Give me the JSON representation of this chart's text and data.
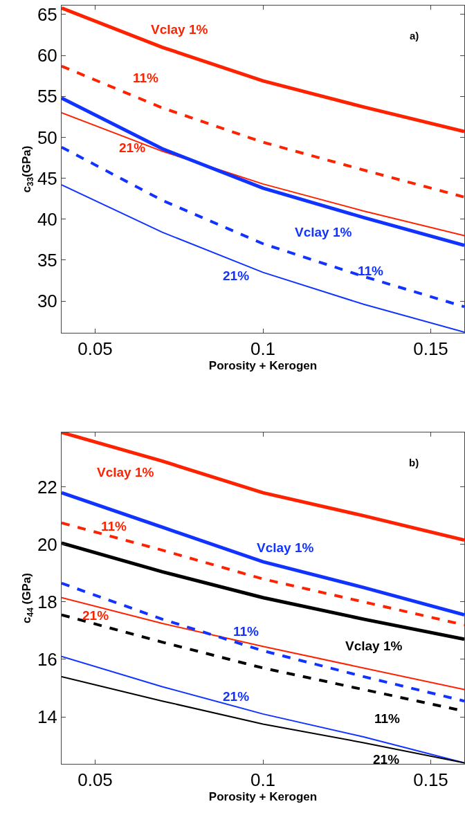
{
  "chart_data": [
    {
      "type": "line",
      "xlabel": "Porosity + Kerogen",
      "ylabel": "c$_{33}$(GPa)",
      "x": [
        0.04,
        0.07,
        0.1,
        0.13,
        0.16
      ],
      "xlim": [
        0.04,
        0.16
      ],
      "xticks": [
        0.05,
        0.1,
        0.15
      ],
      "ylim": [
        26.1,
        66.1
      ],
      "yticks": [
        30,
        35,
        40,
        45,
        50,
        55,
        60,
        65
      ],
      "legend": false,
      "marker": "none",
      "series": [
        {
          "name": "Vclay 1%",
          "color": "#ff2200",
          "line_style": "solid",
          "values": [
            65.8,
            61.0,
            56.9,
            53.7,
            50.7
          ]
        },
        {
          "name": "11%",
          "color": "#ff2200",
          "line_style": "dashed",
          "values": [
            58.7,
            53.6,
            49.4,
            46.0,
            42.7
          ]
        },
        {
          "name": "21%",
          "color": "#ff2200",
          "line_style": "solid",
          "values": [
            53.0,
            48.3,
            44.3,
            41.0,
            38.0
          ]
        },
        {
          "name": "Vclay 1%",
          "color": "#1133ff",
          "line_style": "solid",
          "values": [
            54.8,
            48.6,
            43.8,
            40.2,
            36.8
          ]
        },
        {
          "name": "11%",
          "color": "#1133ff",
          "line_style": "dashed",
          "values": [
            48.8,
            42.3,
            37.0,
            33.0,
            29.3
          ]
        },
        {
          "name": "21%",
          "color": "#1133ff",
          "line_style": "solid",
          "values": [
            44.2,
            38.4,
            33.5,
            29.6,
            26.2
          ]
        }
      ],
      "annotations": [
        "a)"
      ]
    },
    {
      "type": "line",
      "xlabel": "Porosity + Kerogen",
      "ylabel": "c$_{44}$ (GPa)",
      "x": [
        0.04,
        0.07,
        0.1,
        0.13,
        0.16
      ],
      "xlim": [
        0.04,
        0.16
      ],
      "xticks": [
        0.05,
        0.1,
        0.15
      ],
      "ylim": [
        12.36,
        23.9
      ],
      "yticks": [
        14,
        16,
        18,
        20,
        22
      ],
      "legend": false,
      "marker": "none",
      "series": [
        {
          "name": "Vclay 1%",
          "color": "#ff2200",
          "line_style": "solid",
          "values": [
            23.9,
            22.9,
            21.8,
            21.0,
            20.15
          ]
        },
        {
          "name": "11%",
          "color": "#ff2200",
          "line_style": "dashed",
          "values": [
            20.75,
            19.8,
            18.8,
            18.0,
            17.2
          ]
        },
        {
          "name": "21%",
          "color": "#ff2200",
          "line_style": "solid",
          "values": [
            18.15,
            17.25,
            16.45,
            15.7,
            14.95
          ]
        },
        {
          "name": "Vclay 1%",
          "color": "#1133ff",
          "line_style": "solid",
          "values": [
            21.8,
            20.6,
            19.4,
            18.5,
            17.55
          ]
        },
        {
          "name": "11%",
          "color": "#1133ff",
          "line_style": "dashed",
          "values": [
            18.65,
            17.4,
            16.3,
            15.4,
            14.55
          ]
        },
        {
          "name": "21%",
          "color": "#1133ff",
          "line_style": "solid",
          "values": [
            16.1,
            15.05,
            14.1,
            13.3,
            12.4
          ]
        },
        {
          "name": "Vclay 1%",
          "color": "#000000",
          "line_style": "solid",
          "values": [
            20.05,
            19.05,
            18.15,
            17.4,
            16.7
          ]
        },
        {
          "name": "11%",
          "color": "#000000",
          "line_style": "dashed",
          "values": [
            17.55,
            16.6,
            15.7,
            14.95,
            14.2
          ]
        },
        {
          "name": "21%",
          "color": "#000000",
          "line_style": "solid",
          "values": [
            15.4,
            14.55,
            13.75,
            13.1,
            12.4
          ]
        }
      ],
      "annotations": [
        "b)"
      ]
    }
  ]
}
